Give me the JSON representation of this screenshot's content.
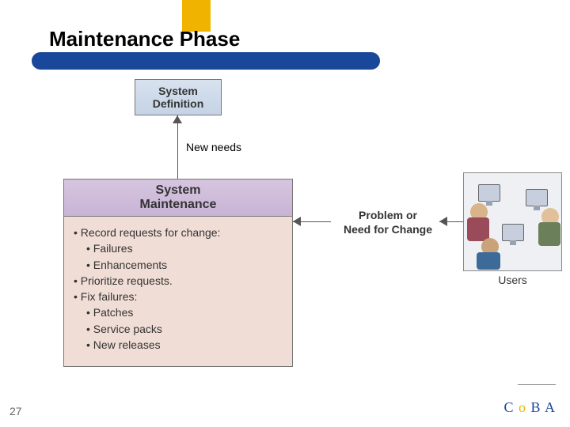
{
  "slide": {
    "title": "Maintenance Phase",
    "number": "27",
    "accent_color": "#f0b400",
    "header_bar_color": "#19479a",
    "background": "#ffffff"
  },
  "diagram": {
    "system_definition": {
      "label": "System\nDefinition",
      "fill": "#cfdcea",
      "border": "#777777",
      "text_color": "#333333"
    },
    "new_needs_label": "New needs",
    "system_maintenance": {
      "header_label": "System\nMaintenance",
      "header_fill": "#ccbadb",
      "body_fill": "#f0ddd6",
      "border": "#777777",
      "items": [
        "• Record requests for change:",
        "  • Failures",
        "  • Enhancements",
        "• Prioritize requests.",
        "• Fix failures:",
        "  • Patches",
        "  • Service packs",
        "  • New releases"
      ]
    },
    "problem_label": "Problem or\nNeed for Change",
    "users_label": "Users",
    "arrow_color": "#555555"
  },
  "branding": {
    "logo_text": "C o B A",
    "logo_primary": "#19479a",
    "logo_accent": "#f0b400"
  }
}
